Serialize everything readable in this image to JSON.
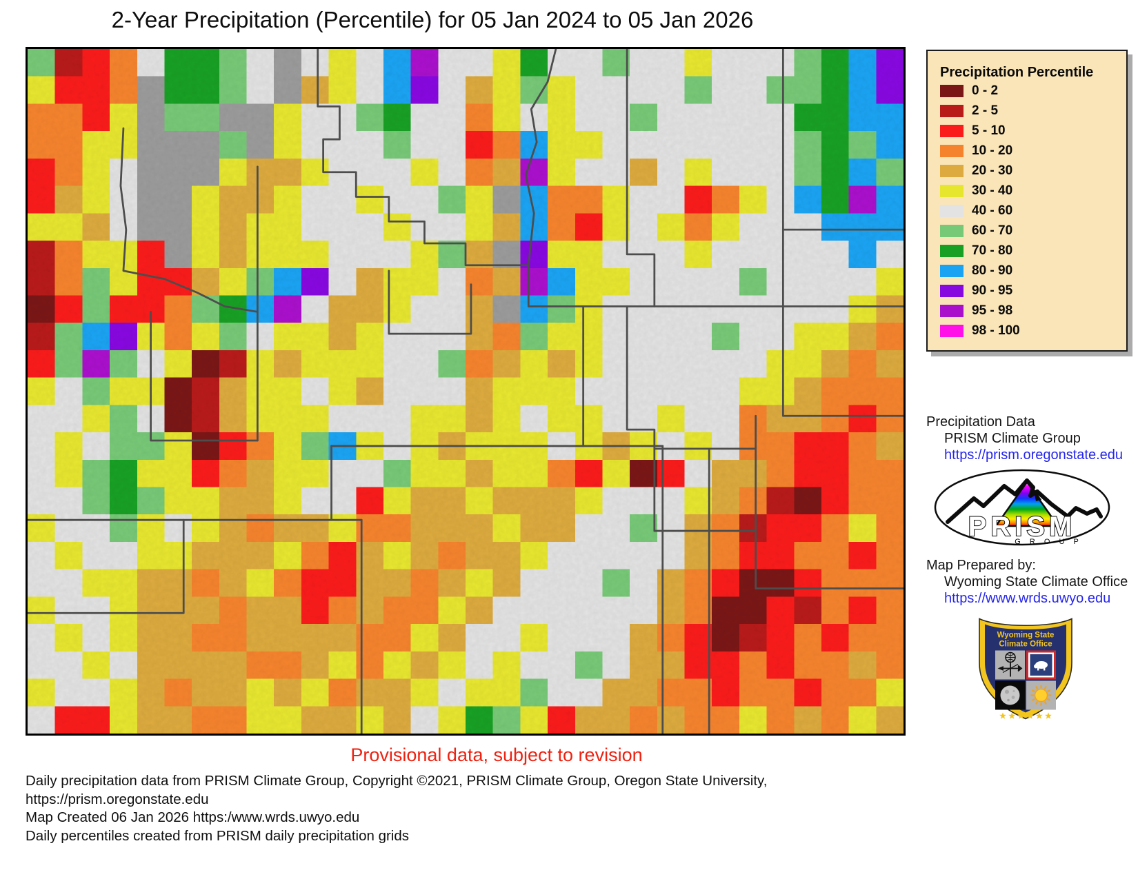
{
  "header": {
    "title": "2-Year Precipitation (Percentile) for 05 Jan 2024 to 05 Jan 2026"
  },
  "colors": {
    "link": "#2525ee",
    "provisional_red": "#ee2211",
    "legend_bg": "#fae5b8",
    "county_line": "#4d4d4d"
  },
  "legend": {
    "title": "Precipitation Percentile",
    "entries": [
      {
        "label": "0 - 2",
        "color": "#7a1616"
      },
      {
        "label": "2 - 5",
        "color": "#b81a1a"
      },
      {
        "label": "5 - 10",
        "color": "#fa1b1b"
      },
      {
        "label": "10 - 20",
        "color": "#f5832d"
      },
      {
        "label": "20 - 30",
        "color": "#dcaa3e"
      },
      {
        "label": "30 - 40",
        "color": "#e7e62f"
      },
      {
        "label": "40 - 60",
        "color": "#e3e3e3"
      },
      {
        "label": "60 - 70",
        "color": "#77c877"
      },
      {
        "label": "70 - 80",
        "color": "#18a024"
      },
      {
        "label": "80 - 90",
        "color": "#1aa3f2"
      },
      {
        "label": "90 - 95",
        "color": "#8808e0"
      },
      {
        "label": "95 - 98",
        "color": "#aa10cc"
      },
      {
        "label": "98 - 100",
        "color": "#ff10e8"
      }
    ]
  },
  "map": {
    "cols": 32,
    "rows": 25,
    "palette": {
      "M": "#7a1616",
      "D": "#b81a1a",
      "R": "#fa1b1b",
      "O": "#f5832d",
      "T": "#dcaa3e",
      "Y": "#e7e62f",
      "W": "#e2e2e2",
      "g": "#77c877",
      "G": "#18a024",
      "B": "#1aa3f2",
      "P": "#8808e0",
      "p": "#aa10cc",
      "F": "#ff10e8",
      ".": "#9b9b9b"
    },
    "grid": [
      "gDROWGGgW.WYWBpWWYGWWgWWYWWWgGBP",
      "YRRO.GGgW.TYWBPWTYgYWWWWgWWggGBP",
      "OORY.gg..YWWgGWWOYWYWWgWWWWWGGBB",
      "OOYY...g.YWWWgWWROBYYWWWWWWWgGgB",
      "ROYW...YTTYWWWYWOTpYWWTWYWWWgGBg",
      "RTYW..YTTYWWYWWgY.BOOYWWROYWBGpB",
      "YYTW..YTYYWWWYWWYTBORYWYOYWWWBBB",
      "DOYYR.YTYYYWWWYgT.PYYWWWYWWWWWBW",
      "DOgYRRTYgBPWTYYWOTpBYYWWWWgWWWWY",
      "MRgRROgGBpWTTYWWT.BgYWWWWWWWWWYT",
      "DgBPYOYgWYYTYWWWTOgYYWWWWgWWYYTO",
      "RgpgWYMDYTYYYWWgOTYTYWWWWWWYYTOT",
      "YWgYYMDTYYWYTWWWTYYYWWWWWWYYTOOO",
      "WWYgWMDTYYYWWWYYTYWYYWWYWWOTTORO",
      "WYWggYMROYgBYWYTYYYWYTYWYWOORROT",
      "WYgGYYROTYYWWgYYTYYORYMRWTTORROO",
      "WWgGgYYTTYWWRYTTYTTTYWWWYTODMROO",
      "YWWgYWYTOTTYOOTTTYTTWWgWTODRROYO",
      "WYWWYYTTTYORTYTOTTYWWWWWTORROORO",
      "WWYYTTOTYORRTTOTYTWWWgWTORMMROOO",
      "YWWYTTTOTTROTOOYTWWWWWWTOMMRDORO",
      "WYWYTTOOTTTTOOYTWWYWWWTORMDROROO",
      "WWYWTTTTOOTYOYTYWYWWgWTTRROROOTO",
      "YWWYTOTTYTYOTTYWYYgWWTTOOROOROOY",
      "WRRYTTOOYYTTYTWYGgYRTTOTOOYOTOYT"
    ],
    "county_lines": [
      "M10.6,0 L10.6,2.1 L11.4,2.1 L11.4,3.3 L10.8,3.3 L10.8,4.5 L12.0,4.5 L12.0,5.4 L13.2,5.4 L13.2,6.3 L14.5,6.3 L14.5,7.1 L16.0,7.1 L16.0,7.9 L18.3,7.9",
      "M19.3,0 L19.0,1.2 L18.4,2.2 L18.6,3.4 L18.2,4.6 L18.5,6.0 L18.3,7.9",
      "M21.9,0 L21.9,7.5 L22.9,7.5 L22.9,9.4",
      "M27.6,0 L27.6,9.4",
      "M27.6,6.6 L32,6.6",
      "M18.3,7.9 L18.3,9.4 L32,9.4",
      "M21.9,9.4 L21.9,13.9 L22.9,13.9 L22.9,17.6 L26.6,17.6",
      "M27.6,9.4 L27.6,13.4 L32,13.4",
      "M26.6,13.4 L26.6,19.7 L32,19.7",
      "M24.9,14.6 L24.9,25",
      "M23.2,14.5 L23.2,25",
      "M22.9,14.6 L26.6,14.6",
      "M11.1,14.5 L23.2,14.5",
      "M11.1,14.5 L11.1,17.2",
      "M0,17.2 L12.2,17.2",
      "M12.2,17.2 L12.2,25",
      "M5.7,17.2 L5.7,20.6 L0,20.6",
      "M4.5,9.6 L4.5,14.3 L8.4,14.3",
      "M8.4,9.6 L8.4,14.3",
      "M20.3,9.4 L20.3,14.5",
      "M3.5,2.9 L3.4,5.0 L3.6,6.6 L3.5,8.1 L5.0,8.4 L6.2,8.9 L7.2,9.4 L8.4,9.6 L8.4,4.3",
      "M13.2,8.1 L13.2,10.4 L16.2,10.4 L16.2,8.6"
    ]
  },
  "sidebar": {
    "precip_data_label": "Precipitation Data",
    "precip_data_source": "PRISM Climate Group",
    "precip_data_url": "https://prism.oregonstate.edu",
    "map_prepared_label": "Map Prepared by:",
    "map_prepared_org": "Wyoming State Climate Office",
    "map_prepared_url": "https://www.wrds.uwyo.edu"
  },
  "prism_logo": {
    "name": "PRISM",
    "sub": "G R O U P"
  },
  "shield": {
    "line1": "Wyoming State",
    "line2": "Climate Office"
  },
  "footer": {
    "provisional": "Provisional data, subject to revision",
    "credits": [
      "Daily precipitation data from PRISM Climate Group, Copyright ©2021, PRISM Climate Group, Oregon State University,",
      "https://prism.oregonstate.edu",
      "Map Created 06 Jan 2026 https:/www.wrds.uwyo.edu",
      "Daily percentiles created from PRISM daily precipitation grids"
    ]
  }
}
